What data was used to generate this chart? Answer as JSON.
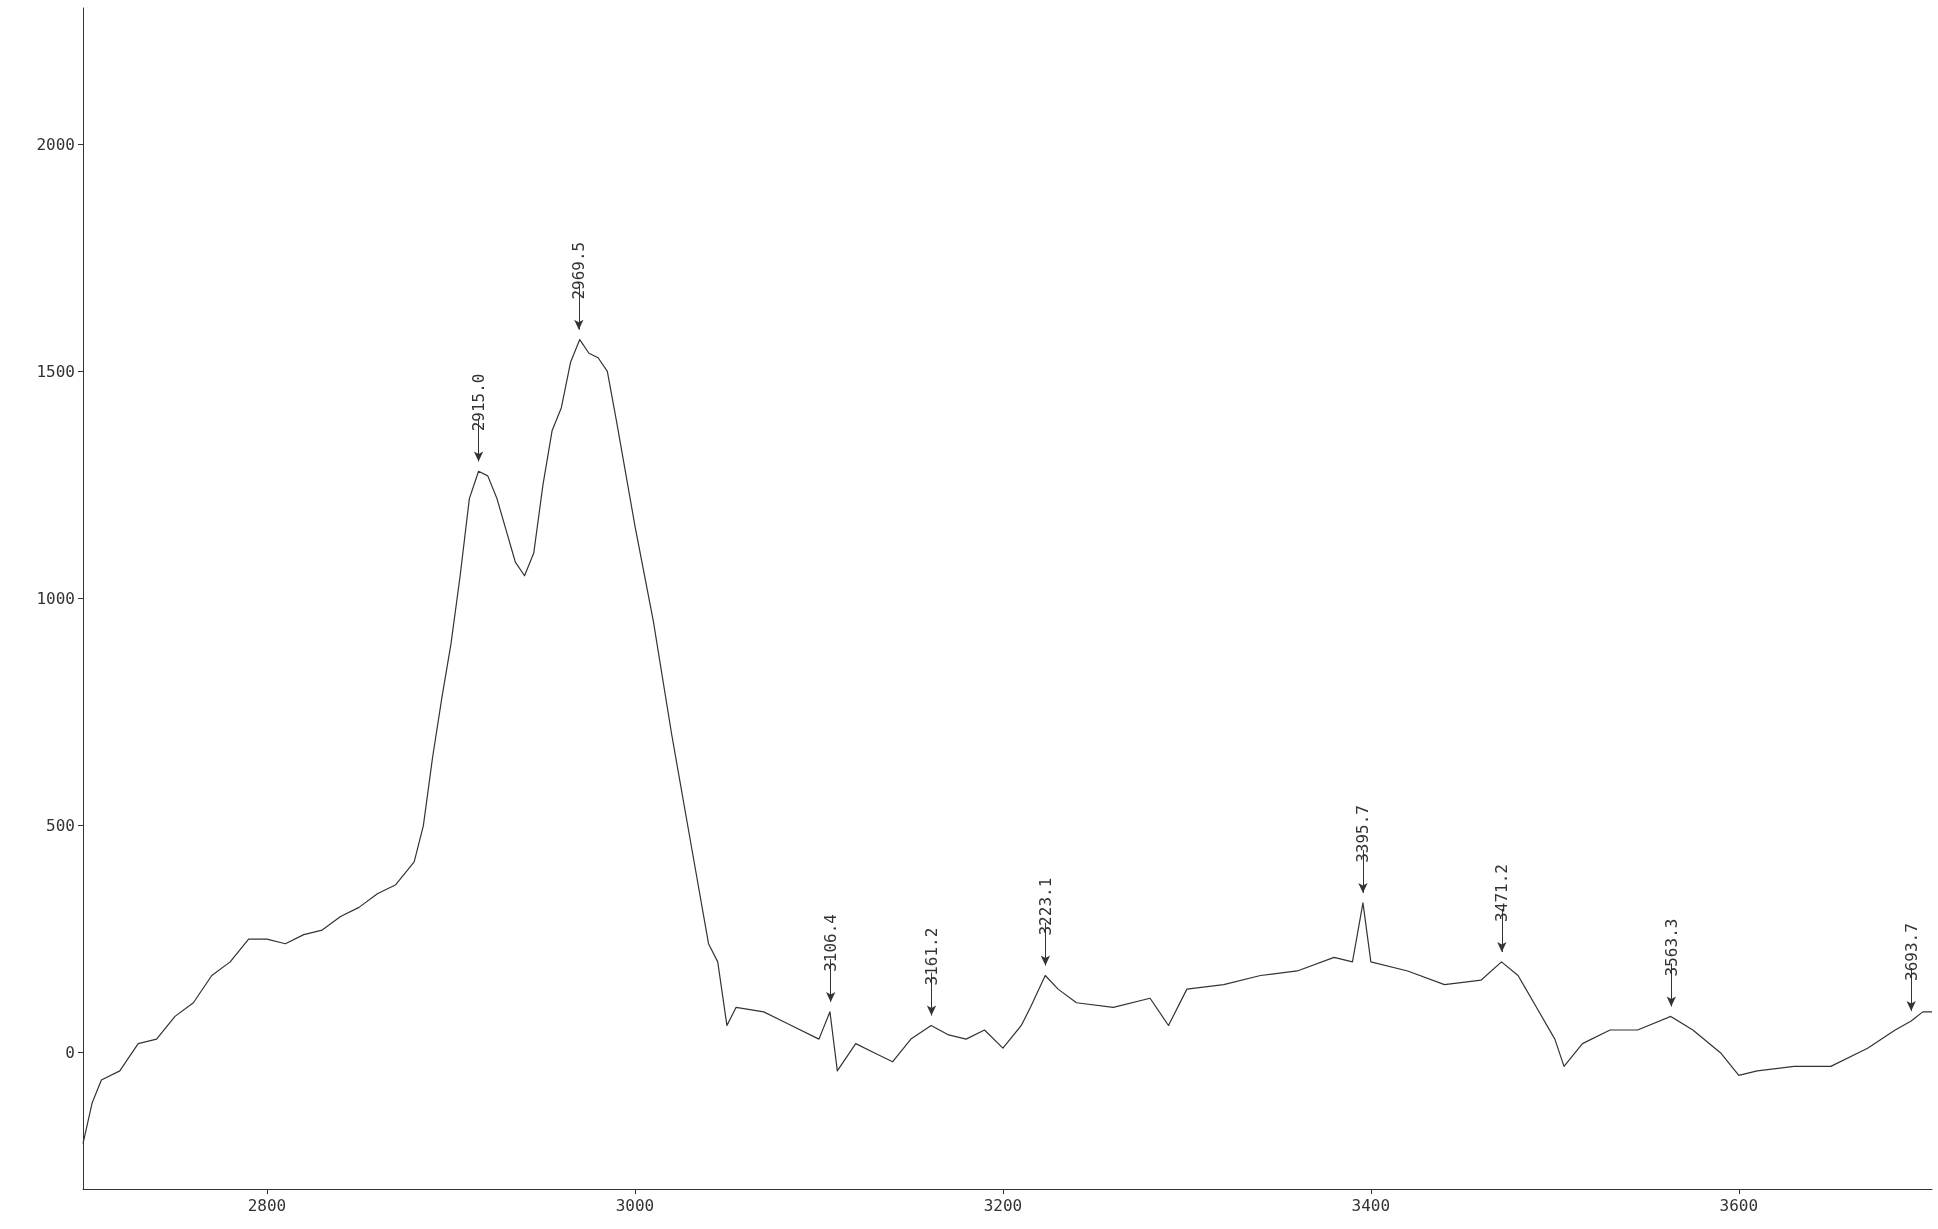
{
  "chart_data": {
    "type": "line",
    "xlim": [
      2700,
      3705
    ],
    "ylim": [
      -300,
      2300
    ],
    "xticks": [
      2800,
      3000,
      3200,
      3400,
      3600
    ],
    "yticks": [
      0,
      500,
      1000,
      1500,
      2000
    ],
    "grid": false,
    "marker": "none",
    "line_style": "solid",
    "x": [
      2700,
      2705,
      2710,
      2720,
      2730,
      2740,
      2750,
      2760,
      2770,
      2780,
      2790,
      2800,
      2810,
      2820,
      2830,
      2840,
      2850,
      2860,
      2870,
      2880,
      2885,
      2890,
      2895,
      2900,
      2905,
      2910,
      2915,
      2920,
      2925,
      2930,
      2935,
      2940,
      2945,
      2950,
      2955,
      2960,
      2965,
      2970,
      2975,
      2980,
      2985,
      2990,
      3000,
      3010,
      3020,
      3030,
      3040,
      3045,
      3050,
      3055,
      3070,
      3085,
      3100,
      3106,
      3110,
      3120,
      3130,
      3140,
      3150,
      3161,
      3170,
      3180,
      3190,
      3200,
      3210,
      3215,
      3223,
      3230,
      3240,
      3260,
      3280,
      3290,
      3300,
      3320,
      3340,
      3360,
      3380,
      3390,
      3395.7,
      3400,
      3420,
      3440,
      3460,
      3471,
      3480,
      3490,
      3500,
      3505,
      3515,
      3530,
      3545,
      3563,
      3575,
      3590,
      3600,
      3610,
      3630,
      3650,
      3670,
      3685,
      3693.7,
      3700,
      3705
    ],
    "series": [
      {
        "color": "#333333",
        "values": [
          -200,
          -110,
          -60,
          -40,
          20,
          30,
          80,
          110,
          170,
          200,
          250,
          250,
          240,
          260,
          270,
          300,
          320,
          350,
          370,
          420,
          500,
          650,
          780,
          900,
          1050,
          1220,
          1280,
          1270,
          1220,
          1150,
          1080,
          1050,
          1100,
          1250,
          1370,
          1420,
          1520,
          1570,
          1540,
          1530,
          1500,
          1390,
          1160,
          950,
          700,
          470,
          240,
          200,
          60,
          100,
          90,
          60,
          30,
          90,
          -40,
          20,
          0,
          -20,
          30,
          60,
          40,
          30,
          50,
          10,
          60,
          100,
          170,
          140,
          110,
          100,
          120,
          60,
          140,
          150,
          170,
          180,
          210,
          200,
          330,
          200,
          180,
          150,
          160,
          200,
          170,
          100,
          30,
          -30,
          20,
          50,
          50,
          80,
          50,
          0,
          -50,
          -40,
          -30,
          -30,
          10,
          50,
          70,
          90,
          90
        ]
      }
    ],
    "annotations": [
      {
        "text": "2915.0",
        "x": 2915,
        "y": 1280
      },
      {
        "text": "2969.5",
        "x": 2969.5,
        "y": 1570
      },
      {
        "text": "3106.4",
        "x": 3106.4,
        "y": 90
      },
      {
        "text": "3161.2",
        "x": 3161.2,
        "y": 60
      },
      {
        "text": "3223.1",
        "x": 3223.1,
        "y": 170
      },
      {
        "text": "3395.7",
        "x": 3395.7,
        "y": 330
      },
      {
        "text": "3471.2",
        "x": 3471.2,
        "y": 200
      },
      {
        "text": "3563.3",
        "x": 3563.3,
        "y": 80
      },
      {
        "text": "3693.7",
        "x": 3693.7,
        "y": 70
      }
    ]
  }
}
